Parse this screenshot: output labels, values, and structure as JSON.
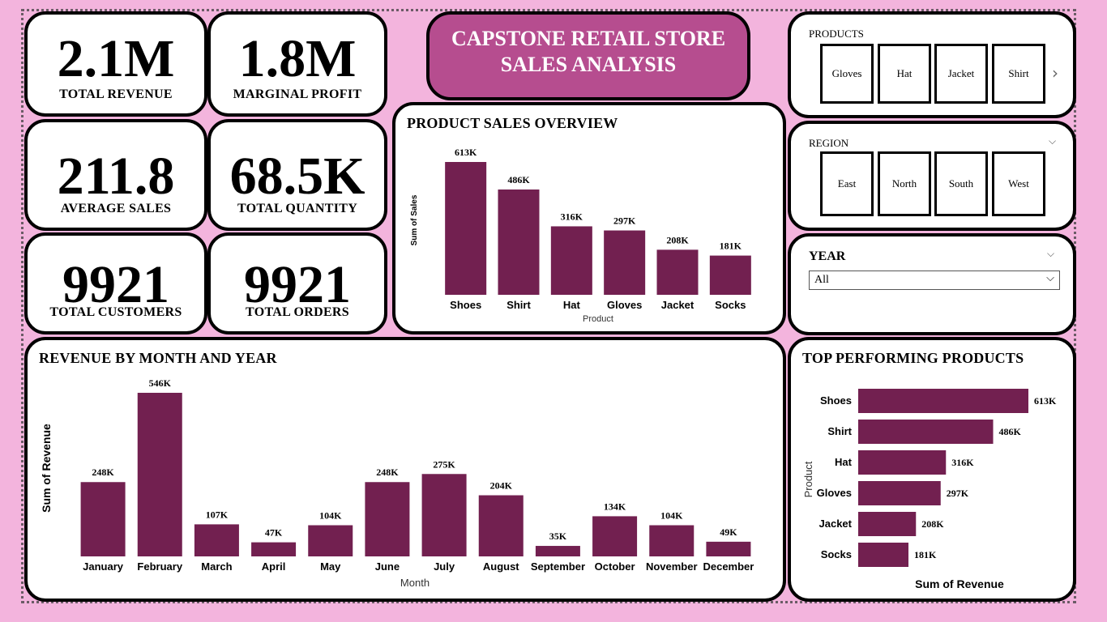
{
  "header": {
    "title_line1": "CAPSTONE RETAIL STORE",
    "title_line2": "SALES ANALYSIS"
  },
  "kpis": [
    {
      "value": "2.1M",
      "label": "TOTAL REVENUE"
    },
    {
      "value": "1.8M",
      "label": "MARGINAL PROFIT"
    },
    {
      "value": "211.8",
      "label": "AVERAGE SALES"
    },
    {
      "value": "68.5K",
      "label": "TOTAL QUANTITY"
    },
    {
      "value": "9921",
      "label": "TOTAL CUSTOMERS"
    },
    {
      "value": "9921",
      "label": "TOTAL ORDERS"
    }
  ],
  "slicers": {
    "products": {
      "title": "PRODUCTS",
      "items": [
        "Gloves",
        "Hat",
        "Jacket",
        "Shirt"
      ],
      "next_icon": "chevron-right-icon"
    },
    "region": {
      "title": "REGION",
      "items": [
        "East",
        "North",
        "South",
        "West"
      ],
      "menu_icon": "chevron-down-icon"
    },
    "year": {
      "title": "YEAR",
      "selected": "All",
      "menu_icon": "chevron-down-icon"
    }
  },
  "colors": {
    "bar": "#722050",
    "background": "#f3b4dd",
    "title_bg": "#b64d8f"
  },
  "chart_data": [
    {
      "id": "product-sales",
      "type": "bar",
      "title": "PRODUCT SALES OVERVIEW",
      "xlabel": "Product",
      "ylabel": "Sum of Sales",
      "categories": [
        "Shoes",
        "Shirt",
        "Hat",
        "Gloves",
        "Jacket",
        "Socks"
      ],
      "values": [
        613,
        486,
        316,
        297,
        208,
        181
      ],
      "labels": [
        "613K",
        "486K",
        "316K",
        "297K",
        "208K",
        "181K"
      ],
      "ylim": [
        0,
        613
      ]
    },
    {
      "id": "revenue-month",
      "type": "bar",
      "title": "REVENUE BY MONTH AND YEAR",
      "xlabel": "Month",
      "ylabel": "Sum of Revenue",
      "categories": [
        "January",
        "February",
        "March",
        "April",
        "May",
        "June",
        "July",
        "August",
        "September",
        "October",
        "November",
        "December"
      ],
      "values": [
        248,
        546,
        107,
        47,
        104,
        248,
        275,
        204,
        35,
        134,
        104,
        49
      ],
      "labels": [
        "248K",
        "546K",
        "107K",
        "47K",
        "104K",
        "248K",
        "275K",
        "204K",
        "35K",
        "134K",
        "104K",
        "49K"
      ],
      "ylim": [
        0,
        546
      ]
    },
    {
      "id": "top-products",
      "type": "bar",
      "orientation": "horizontal",
      "title": "TOP PERFORMING PRODUCTS",
      "xlabel": "Sum of Revenue",
      "ylabel": "Product",
      "categories": [
        "Shoes",
        "Shirt",
        "Hat",
        "Gloves",
        "Jacket",
        "Socks"
      ],
      "values": [
        613,
        486,
        316,
        297,
        208,
        181
      ],
      "labels": [
        "613K",
        "486K",
        "316K",
        "297K",
        "208K",
        "181K"
      ],
      "xlim": [
        0,
        613
      ]
    }
  ]
}
